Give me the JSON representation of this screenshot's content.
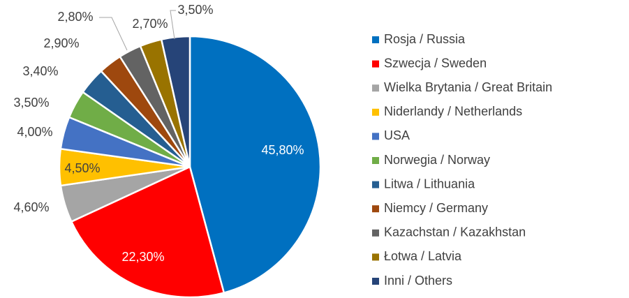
{
  "chart_data": {
    "type": "pie",
    "categories": [
      "Rosja / Russia",
      "Szwecja / Sweden",
      "Wielka Brytania / Great Britain",
      "Niderlandy / Netherlands",
      "USA",
      "Norwegia / Norway",
      "Litwa / Lithuania",
      "Niemcy / Germany",
      "Kazachstan / Kazakhstan",
      "Łotwa / Latvia",
      "Inni / Others"
    ],
    "values": [
      45.8,
      22.3,
      4.6,
      4.5,
      4.0,
      3.5,
      3.4,
      2.9,
      2.8,
      2.7,
      3.5
    ],
    "value_labels": [
      "45,80%",
      "22,30%",
      "4,60%",
      "4,50%",
      "4,00%",
      "3,50%",
      "3,40%",
      "2,90%",
      "2,80%",
      "2,70%",
      "3,50%"
    ],
    "colors": [
      "#0070c0",
      "#ff0000",
      "#a5a5a5",
      "#ffc000",
      "#4472c4",
      "#70ad47",
      "#255e91",
      "#9e480e",
      "#636363",
      "#997300",
      "#264478"
    ],
    "legend": "right"
  }
}
